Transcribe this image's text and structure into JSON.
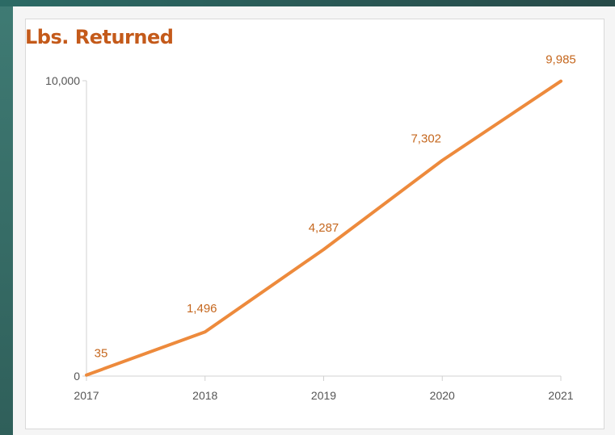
{
  "chart_data": {
    "type": "line",
    "title": "Lbs. Returned",
    "categories": [
      "2017",
      "2018",
      "2019",
      "2020",
      "2021"
    ],
    "series": [
      {
        "values": [
          35,
          1496,
          4287,
          7302,
          9985
        ]
      }
    ],
    "data_labels": [
      "35",
      "1,496",
      "4,287",
      "7,302",
      "9,985"
    ],
    "y_tick_labels": [
      "0",
      "10,000"
    ],
    "y_ticks": [
      0,
      10000
    ],
    "ylim": [
      0,
      10000
    ],
    "xlabel": "",
    "ylabel": "",
    "grid": false,
    "legend": "none",
    "line_color": "#ed8a3c",
    "title_color": "#c45a1a",
    "label_color": "#c5671e"
  }
}
